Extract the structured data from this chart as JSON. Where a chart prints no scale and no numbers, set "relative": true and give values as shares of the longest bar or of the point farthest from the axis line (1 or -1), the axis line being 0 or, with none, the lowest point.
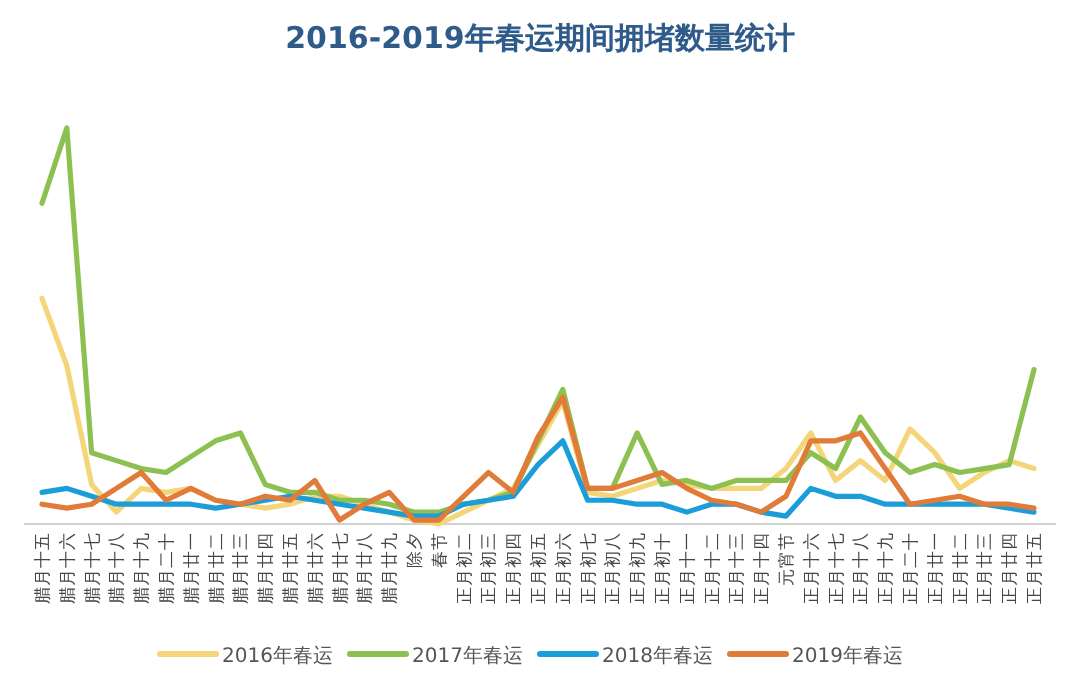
{
  "chart_data": {
    "type": "line",
    "title": "2016-2019年春运期间拥堵数量统计",
    "relative": true,
    "tick_labels": "x",
    "legend": "bottom",
    "marker": "none",
    "line_style": "solid",
    "categories": [
      "腊月十五",
      "腊月十六",
      "腊月十七",
      "腊月十八",
      "腊月十九",
      "腊月二十",
      "腊月廿一",
      "腊月廿二",
      "腊月廿三",
      "腊月廿四",
      "腊月廿五",
      "腊月廿六",
      "腊月廿七",
      "腊月廿八",
      "腊月廿九",
      "除夕",
      "春节",
      "正月初二",
      "正月初三",
      "正月初四",
      "正月初五",
      "正月初六",
      "正月初七",
      "正月初八",
      "正月初九",
      "正月初十",
      "正月十一",
      "正月十二",
      "正月十三",
      "正月十四",
      "元宵节",
      "正月十六",
      "正月十七",
      "正月十八",
      "正月十九",
      "正月二十",
      "正月廿一",
      "正月廿二",
      "正月廿三",
      "正月廿四",
      "正月廿五"
    ],
    "series": [
      {
        "name": "2016年春运",
        "color": "#f5d57a",
        "values": [
          0.57,
          0.4,
          0.1,
          0.03,
          0.09,
          0.08,
          0.09,
          0.06,
          0.05,
          0.04,
          0.05,
          0.07,
          0.07,
          0.05,
          0.03,
          0.01,
          0.0,
          0.03,
          0.06,
          0.09,
          0.2,
          0.31,
          0.08,
          0.07,
          0.09,
          0.11,
          0.1,
          0.09,
          0.09,
          0.09,
          0.14,
          0.23,
          0.11,
          0.16,
          0.11,
          0.24,
          0.18,
          0.09,
          0.13,
          0.16,
          0.14
        ]
      },
      {
        "name": "2017年春运",
        "color": "#8cc152",
        "values": [
          0.81,
          1.0,
          0.18,
          0.16,
          0.14,
          0.13,
          0.17,
          0.21,
          0.23,
          0.1,
          0.08,
          0.08,
          0.06,
          0.06,
          0.05,
          0.03,
          0.03,
          0.05,
          0.06,
          0.08,
          0.21,
          0.34,
          0.09,
          0.09,
          0.23,
          0.1,
          0.11,
          0.09,
          0.11,
          0.11,
          0.11,
          0.18,
          0.14,
          0.27,
          0.18,
          0.13,
          0.15,
          0.13,
          0.14,
          0.15,
          0.39
        ]
      },
      {
        "name": "2018年春运",
        "color": "#1b9dd9",
        "values": [
          0.08,
          0.09,
          0.07,
          0.05,
          0.05,
          0.05,
          0.05,
          0.04,
          0.05,
          0.06,
          0.07,
          0.06,
          0.05,
          0.04,
          0.03,
          0.02,
          0.02,
          0.05,
          0.06,
          0.07,
          0.15,
          0.21,
          0.06,
          0.06,
          0.05,
          0.05,
          0.03,
          0.05,
          0.05,
          0.03,
          0.02,
          0.09,
          0.07,
          0.07,
          0.05,
          0.05,
          0.05,
          0.05,
          0.05,
          0.04,
          0.03
        ]
      },
      {
        "name": "2019年春运",
        "color": "#e07b39",
        "values": [
          0.05,
          0.04,
          0.05,
          0.09,
          0.13,
          0.06,
          0.09,
          0.06,
          0.05,
          0.07,
          0.06,
          0.11,
          0.01,
          0.05,
          0.08,
          0.01,
          0.01,
          0.07,
          0.13,
          0.08,
          0.22,
          0.32,
          0.09,
          0.09,
          0.11,
          0.13,
          0.09,
          0.06,
          0.05,
          0.03,
          0.07,
          0.21,
          0.21,
          0.23,
          0.14,
          0.05,
          0.06,
          0.07,
          0.05,
          0.05,
          0.04
        ]
      }
    ]
  }
}
